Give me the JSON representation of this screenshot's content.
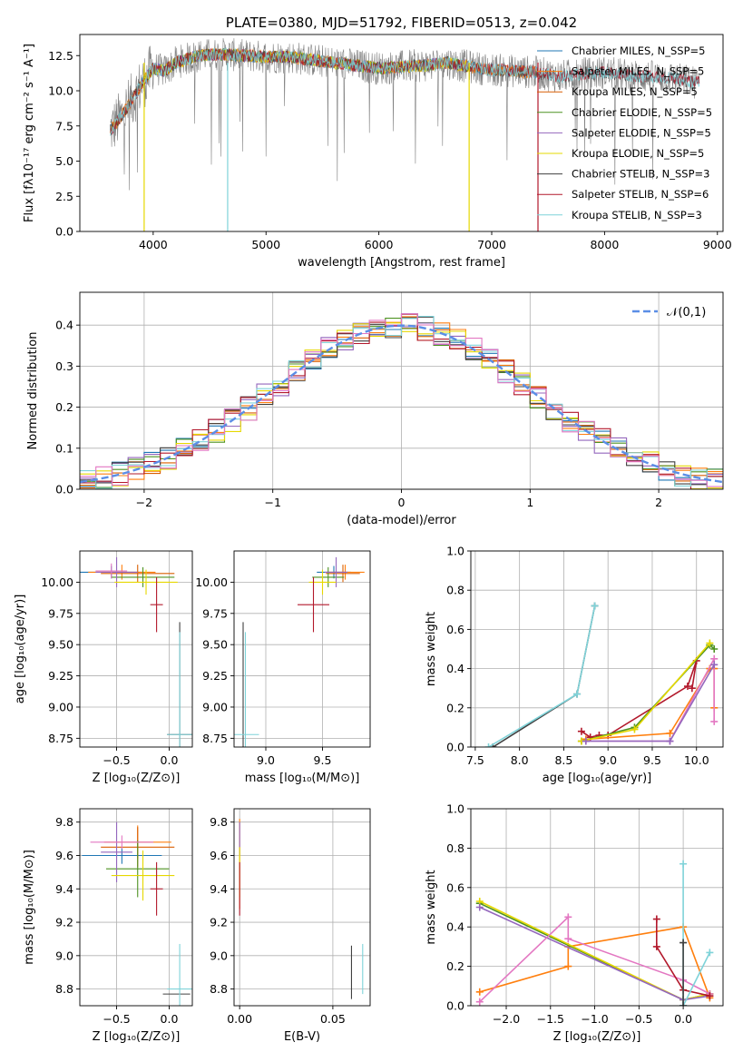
{
  "colors": {
    "chabrier_miles": "#1f77b4",
    "salpeter_miles": "#ff7f0e",
    "kroupa_miles": "#d95f02",
    "chabrier_elodie": "#4d9221",
    "salpeter_elodie": "#9467bd",
    "kroupa_elodie": "#e6d800",
    "chabrier_stelib": "#404040",
    "salpeter_stelib": "#b2182b",
    "kroupa_stelib": "#7fd3d9",
    "pink": "#e377c2",
    "lime": "#9acd32",
    "normal": "#5b8ee6",
    "data": "#808080"
  },
  "chart_data": [
    {
      "id": "spectrum",
      "type": "line",
      "title": "PLATE=0380, MJD=51792, FIBERID=0513, z=0.042",
      "xlabel": "wavelength [Angstrom, rest frame]",
      "ylabel": "Flux [fλ10⁻¹⁷ erg cm⁻² s⁻¹ A⁻¹]",
      "xlim": [
        3350,
        9050
      ],
      "ylim": [
        0,
        14
      ],
      "xticks": [
        4000,
        5000,
        6000,
        7000,
        8000,
        9000
      ],
      "yticks": [
        "0.0",
        "2.5",
        "5.0",
        "7.5",
        "10.0",
        "12.5"
      ],
      "grid": false,
      "legend_position": "top-right",
      "legend": [
        "Chabrier MILES, N_SSP=5",
        "Salpeter MILES, N_SSP=5",
        "Kroupa MILES, N_SSP=5",
        "Chabrier ELODIE, N_SSP=5",
        "Salpeter ELODIE, N_SSP=5",
        "Kroupa ELODIE, N_SSP=5",
        "Chabrier STELIB, N_SSP=3",
        "Salpeter STELIB, N_SSP=6",
        "Kroupa STELIB, N_SSP=3"
      ],
      "spectrum_shape": {
        "x": [
          3600,
          3700,
          3800,
          3900,
          4000,
          4100,
          4200,
          4400,
          4600,
          4800,
          5000,
          5200,
          5400,
          5600,
          5800,
          6000,
          6200,
          6400,
          6600,
          6800,
          7000,
          7200,
          7400,
          7600,
          7800,
          8000,
          8200,
          8400,
          8600,
          8800
        ],
        "y": [
          7.0,
          8.0,
          9.2,
          10.5,
          11.6,
          11.4,
          12.0,
          12.5,
          12.6,
          12.5,
          12.4,
          12.4,
          12.2,
          12.0,
          11.8,
          11.6,
          11.7,
          11.8,
          12.0,
          11.7,
          11.5,
          11.4,
          11.3,
          11.0,
          11.2,
          11.3,
          11.1,
          11.0,
          10.9,
          10.6
        ]
      }
    },
    {
      "id": "residuals",
      "type": "histogram",
      "xlabel": "(data-model)/error",
      "ylabel": "Normed distribution",
      "xlim": [
        -2.5,
        2.5
      ],
      "ylim": [
        0,
        0.48
      ],
      "xticks": [
        "−2",
        "−1",
        "0",
        "1",
        "2"
      ],
      "yticks": [
        "0.0",
        "0.1",
        "0.2",
        "0.3",
        "0.4"
      ],
      "grid": true,
      "legend_position": "top-right",
      "legend": [
        "𝒩(0,1)"
      ],
      "bin_width": 0.125
    },
    {
      "id": "age_vs_Z",
      "type": "scatter",
      "xlabel": "Z [log₁₀(Z/Z⊙)]",
      "ylabel": "age  [log₁₀(age/yr)]",
      "xlim": [
        -0.85,
        0.22
      ],
      "ylim": [
        8.68,
        10.25
      ],
      "xticks": [
        "−0.5",
        "0.0"
      ],
      "yticks": [
        "8.75",
        "9.00",
        "9.25",
        "9.50",
        "9.75",
        "10.00"
      ],
      "grid": true,
      "points": [
        {
          "c": "chabrier_miles",
          "x": -0.55,
          "y": 10.08,
          "ex": 0.3,
          "ey": 0.05
        },
        {
          "c": "salpeter_miles",
          "x": -0.45,
          "y": 10.08,
          "ex": 0.32,
          "ey": 0.06
        },
        {
          "c": "kroupa_miles",
          "x": -0.3,
          "y": 10.07,
          "ex": 0.35,
          "ey": 0.07
        },
        {
          "c": "chabrier_elodie",
          "x": -0.25,
          "y": 10.04,
          "ex": 0.3,
          "ey": 0.08
        },
        {
          "c": "salpeter_elodie",
          "x": -0.5,
          "y": 10.08,
          "ex": 0.2,
          "ey": 0.12
        },
        {
          "c": "kroupa_elodie",
          "x": -0.22,
          "y": 10.0,
          "ex": 0.3,
          "ey": 0.1
        },
        {
          "c": "pink",
          "x": -0.55,
          "y": 10.09,
          "ex": 0.15,
          "ey": 0.06
        },
        {
          "c": "salpeter_stelib",
          "x": -0.12,
          "y": 9.82,
          "ex": 0.06,
          "ey": 0.22
        },
        {
          "c": "chabrier_stelib",
          "x": 0.1,
          "y": 8.78,
          "ex": 0.12,
          "ey": 0.9
        },
        {
          "c": "kroupa_stelib",
          "x": 0.1,
          "y": 8.78,
          "ex": 0.12,
          "ey": 0.82
        }
      ]
    },
    {
      "id": "age_vs_mass",
      "type": "scatter",
      "xlabel": "mass [log₁₀(M/M⊙)]",
      "ylabel": "",
      "xlim": [
        8.72,
        9.92
      ],
      "ylim": [
        8.68,
        10.25
      ],
      "xticks": [
        "9.0",
        "9.5"
      ],
      "yticks": [
        "8.75",
        "9.00",
        "9.25",
        "9.50",
        "9.75",
        "10.00"
      ],
      "grid": true,
      "points": [
        {
          "c": "chabrier_miles",
          "x": 9.6,
          "y": 10.08,
          "ex": 0.15,
          "ey": 0.05
        },
        {
          "c": "salpeter_miles",
          "x": 9.7,
          "y": 10.08,
          "ex": 0.17,
          "ey": 0.06
        },
        {
          "c": "kroupa_miles",
          "x": 9.68,
          "y": 10.07,
          "ex": 0.15,
          "ey": 0.07
        },
        {
          "c": "chabrier_elodie",
          "x": 9.55,
          "y": 10.04,
          "ex": 0.14,
          "ey": 0.08
        },
        {
          "c": "salpeter_elodie",
          "x": 9.62,
          "y": 10.08,
          "ex": 0.1,
          "ey": 0.12
        },
        {
          "c": "kroupa_elodie",
          "x": 9.5,
          "y": 10.0,
          "ex": 0.12,
          "ey": 0.1
        },
        {
          "c": "salpeter_stelib",
          "x": 9.42,
          "y": 9.82,
          "ex": 0.14,
          "ey": 0.22
        },
        {
          "c": "chabrier_stelib",
          "x": 8.8,
          "y": 8.78,
          "ex": 0.0,
          "ey": 0.9
        },
        {
          "c": "kroupa_stelib",
          "x": 8.82,
          "y": 8.78,
          "ex": 0.12,
          "ey": 0.82
        }
      ]
    },
    {
      "id": "mw_vs_age",
      "type": "line",
      "xlabel": "age  [log₁₀(age/yr)]",
      "ylabel": "mass weight",
      "xlim": [
        7.45,
        10.3
      ],
      "ylim": [
        0,
        1
      ],
      "xticks": [
        "7.5",
        "8.0",
        "8.5",
        "9.0",
        "9.5",
        "10.0"
      ],
      "yticks": [
        "0.0",
        "0.2",
        "0.4",
        "0.6",
        "0.8",
        "1.0"
      ],
      "grid": true,
      "series": [
        {
          "c": "chabrier_stelib",
          "x": [
            7.7,
            8.65,
            8.85
          ],
          "y": [
            0.0,
            0.27,
            0.72
          ]
        },
        {
          "c": "kroupa_stelib",
          "x": [
            7.65,
            8.65,
            8.85
          ],
          "y": [
            0.0,
            0.27,
            0.72
          ]
        },
        {
          "c": "salpeter_stelib",
          "x": [
            8.7,
            8.8,
            8.9,
            9.0,
            9.9,
            10.0,
            9.95
          ],
          "y": [
            0.08,
            0.05,
            0.06,
            0.06,
            0.31,
            0.44,
            0.3
          ]
        },
        {
          "c": "salpeter_miles",
          "x": [
            8.75,
            9.7,
            10.15,
            10.2,
            10.2
          ],
          "y": [
            0.04,
            0.07,
            0.4,
            0.4,
            0.2
          ]
        },
        {
          "c": "chabrier_elodie",
          "x": [
            8.7,
            9.3,
            10.15,
            10.2
          ],
          "y": [
            0.03,
            0.1,
            0.52,
            0.5
          ]
        },
        {
          "c": "kroupa_elodie",
          "x": [
            8.7,
            9.3,
            10.15
          ],
          "y": [
            0.03,
            0.09,
            0.53
          ]
        },
        {
          "c": "pink",
          "x": [
            8.75,
            9.7,
            10.2,
            10.2
          ],
          "y": [
            0.03,
            0.03,
            0.45,
            0.13
          ]
        },
        {
          "c": "salpeter_elodie",
          "x": [
            8.75,
            9.7,
            10.2
          ],
          "y": [
            0.03,
            0.03,
            0.42
          ]
        }
      ]
    },
    {
      "id": "mass_vs_Z",
      "type": "scatter",
      "xlabel": "Z [log₁₀(Z/Z⊙)]",
      "ylabel": "mass [log₁₀(M/M⊙)]",
      "xlim": [
        -0.85,
        0.22
      ],
      "ylim": [
        8.7,
        9.88
      ],
      "xticks": [
        "−0.5",
        "0.0"
      ],
      "yticks": [
        "8.8",
        "9.0",
        "9.2",
        "9.4",
        "9.6",
        "9.8"
      ],
      "grid": true,
      "points": [
        {
          "c": "chabrier_miles",
          "x": -0.45,
          "y": 9.6,
          "ex": 0.38,
          "ey": 0.05
        },
        {
          "c": "salpeter_miles",
          "x": -0.3,
          "y": 9.68,
          "ex": 0.32,
          "ey": 0.1
        },
        {
          "c": "kroupa_miles",
          "x": -0.3,
          "y": 9.65,
          "ex": 0.35,
          "ey": 0.12
        },
        {
          "c": "chabrier_elodie",
          "x": -0.3,
          "y": 9.52,
          "ex": 0.3,
          "ey": 0.17
        },
        {
          "c": "salpeter_elodie",
          "x": -0.5,
          "y": 9.62,
          "ex": 0.15,
          "ey": 0.18
        },
        {
          "c": "kroupa_elodie",
          "x": -0.25,
          "y": 9.48,
          "ex": 0.3,
          "ey": 0.15
        },
        {
          "c": "pink",
          "x": -0.45,
          "y": 9.68,
          "ex": 0.3,
          "ey": 0.04
        },
        {
          "c": "salpeter_stelib",
          "x": -0.12,
          "y": 9.4,
          "ex": 0.06,
          "ey": 0.16
        },
        {
          "c": "chabrier_stelib",
          "x": 0.07,
          "y": 8.77,
          "ex": 0.13,
          "ey": 0.0
        },
        {
          "c": "kroupa_stelib",
          "x": 0.1,
          "y": 8.8,
          "ex": 0.12,
          "ey": 0.27
        }
      ]
    },
    {
      "id": "mass_vs_EBV",
      "type": "scatter",
      "xlabel": "E(B-V)",
      "ylabel": "",
      "xlim": [
        -0.003,
        0.07
      ],
      "ylim": [
        8.7,
        9.88
      ],
      "xticks": [
        "0.00",
        "0.05"
      ],
      "yticks": [
        "8.8",
        "9.0",
        "9.2",
        "9.4",
        "9.6",
        "9.8"
      ],
      "grid": true,
      "points": [
        {
          "c": "salpeter_miles",
          "x": 0.0,
          "y": 9.55,
          "ex": 0.0,
          "ey": 0.27
        },
        {
          "c": "salpeter_elodie",
          "x": 0.0,
          "y": 9.7,
          "ex": 0.0,
          "ey": 0.1
        },
        {
          "c": "kroupa_elodie",
          "x": 0.0,
          "y": 9.5,
          "ex": 0.0,
          "ey": 0.15
        },
        {
          "c": "salpeter_stelib",
          "x": 0.0,
          "y": 9.4,
          "ex": 0.0,
          "ey": 0.16
        },
        {
          "c": "chabrier_stelib",
          "x": 0.06,
          "y": 8.9,
          "ex": 0.0,
          "ey": 0.16
        },
        {
          "c": "kroupa_stelib",
          "x": 0.066,
          "y": 8.92,
          "ex": 0.0,
          "ey": 0.15
        }
      ]
    },
    {
      "id": "mw_vs_Z",
      "type": "line",
      "xlabel": "Z [log₁₀(Z/Z⊙)]",
      "ylabel": "mass weight",
      "xlim": [
        -2.4,
        0.45
      ],
      "ylim": [
        0,
        1
      ],
      "xticks": [
        "−2.0",
        "−1.5",
        "−1.0",
        "−0.5",
        "0.0"
      ],
      "yticks": [
        "0.0",
        "0.2",
        "0.4",
        "0.6",
        "0.8",
        "1.0"
      ],
      "grid": true,
      "series": [
        {
          "c": "salpeter_miles",
          "x": [
            -2.3,
            -1.3,
            -1.3,
            0.0,
            0.3
          ],
          "y": [
            0.07,
            0.2,
            0.3,
            0.4,
            0.04
          ]
        },
        {
          "c": "chabrier_elodie",
          "x": [
            -2.3,
            0.0,
            0.3
          ],
          "y": [
            0.52,
            0.03,
            0.06
          ]
        },
        {
          "c": "kroupa_elodie",
          "x": [
            -2.3,
            0.0,
            0.3
          ],
          "y": [
            0.53,
            0.03,
            0.06
          ]
        },
        {
          "c": "salpeter_elodie",
          "x": [
            -2.3,
            0.0,
            0.3
          ],
          "y": [
            0.5,
            0.03,
            0.05
          ]
        },
        {
          "c": "pink",
          "x": [
            -2.3,
            -1.3,
            -1.3,
            0.0,
            0.3
          ],
          "y": [
            0.02,
            0.45,
            0.34,
            0.13,
            0.06
          ]
        },
        {
          "c": "salpeter_stelib",
          "x": [
            -0.3,
            -0.3,
            0.0,
            0.3
          ],
          "y": [
            0.44,
            0.3,
            0.08,
            0.05
          ]
        },
        {
          "c": "kroupa_stelib",
          "x": [
            0.0,
            0.0,
            0.3,
            0.0
          ],
          "y": [
            0.72,
            0.0,
            0.27,
            0.0
          ]
        },
        {
          "c": "chabrier_stelib",
          "x": [
            0.0,
            0.0
          ],
          "y": [
            0.32,
            0.0
          ]
        }
      ]
    }
  ]
}
